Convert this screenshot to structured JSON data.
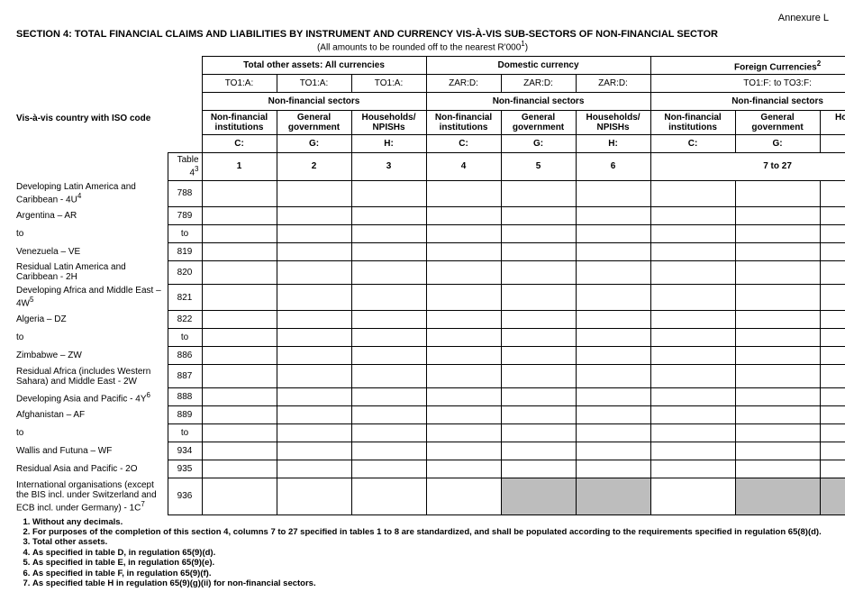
{
  "annexure": "Annexure L",
  "section_title": "SECTION 4: TOTAL FINANCIAL CLAIMS AND LIABILITIES BY INSTRUMENT AND CURRENCY VIS-À-VIS SUB-SECTORS OF NON-FINANCIAL SECTOR",
  "rounding_note": "(All amounts to be rounded off to the nearest R'000",
  "rounding_sup": "1",
  "rounding_close": ")",
  "vis_label": "Vis-à-vis country with  ISO code",
  "header": {
    "group1": "Total other assets: All currencies",
    "group2": "Domestic currency",
    "group3": "Foreign Currencies",
    "group3_sup": "2",
    "TO1A": "TO1:A:",
    "ZARD": "ZAR:D:",
    "TO1F": "TO1:F: to TO3:F:",
    "nfs": "Non-financial sectors",
    "nfi": "Non-financial institutions",
    "gg": "General government",
    "hn": "Households/ NPISHs",
    "C": "C:",
    "G": "G:",
    "H": "H:",
    "n1": "1",
    "n2": "2",
    "n3": "3",
    "n4": "4",
    "n5": "5",
    "n6": "6",
    "n7": "7 to 27",
    "table4": "Table 4",
    "table4_sup": "3"
  },
  "rows": [
    {
      "label": "Developing Latin America and Caribbean - 4U",
      "sup": "4",
      "code": "788",
      "cells": 8
    },
    {
      "label": "Argentina – AR",
      "indent": true,
      "code": "789",
      "cells": 8
    },
    {
      "label": "to",
      "indent": true,
      "code": "to",
      "cells": 8
    },
    {
      "label": "Venezuela – VE",
      "indent": true,
      "code": "819",
      "cells": 8
    },
    {
      "label": "Residual Latin America and Caribbean - 2H",
      "indent": true,
      "code": "820",
      "cells": 8
    },
    {
      "label": "Developing Africa and Middle East – 4W",
      "sup": "5",
      "code": "821",
      "cells": 8
    },
    {
      "label": "Algeria – DZ",
      "indent": true,
      "code": "822",
      "cells": 8
    },
    {
      "label": "to",
      "indent": true,
      "code": "to",
      "cells": 8
    },
    {
      "label": "Zimbabwe – ZW",
      "indent": true,
      "code": "886",
      "cells": 8
    },
    {
      "label": "Residual Africa (includes Western Sahara) and Middle East - 2W",
      "indent": true,
      "code": "887",
      "cells": 8
    },
    {
      "label": "Developing Asia and Pacific  - 4Y",
      "sup": "6",
      "code": "888",
      "cells": 8
    },
    {
      "label": "Afghanistan – AF",
      "indent": true,
      "code": "889",
      "cells": 8
    },
    {
      "label": "to",
      "indent": true,
      "code": "to",
      "cells": 8
    },
    {
      "label": "Wallis and Futuna – WF",
      "indent": true,
      "code": "934",
      "cells": 8
    },
    {
      "label": "Residual Asia and Pacific - 2O",
      "indent": true,
      "code": "935",
      "cells": 8
    },
    {
      "label": "International organisations (except the BIS incl. under Switzerland and ECB incl. under Germany) - 1C",
      "sup": "7",
      "code": "936",
      "cells": 8,
      "grey": [
        4,
        5,
        7
      ]
    }
  ],
  "footnotes": [
    "Without any decimals.",
    "For purposes of the completion of this section 4, columns 7 to 27 specified in tables 1 to 8 are standardized, and shall be populated according to the requirements specified in regulation 65(8)(d).",
    "Total other assets.",
    "As specified in table D, in regulation 65(9)(d).",
    "As specified in table E, in regulation 65(9)(e).",
    "As specified in table F, in regulation 65(9)(f).",
    "As specified table H in regulation 65(9)(g)(ii) for non-financial sectors."
  ]
}
